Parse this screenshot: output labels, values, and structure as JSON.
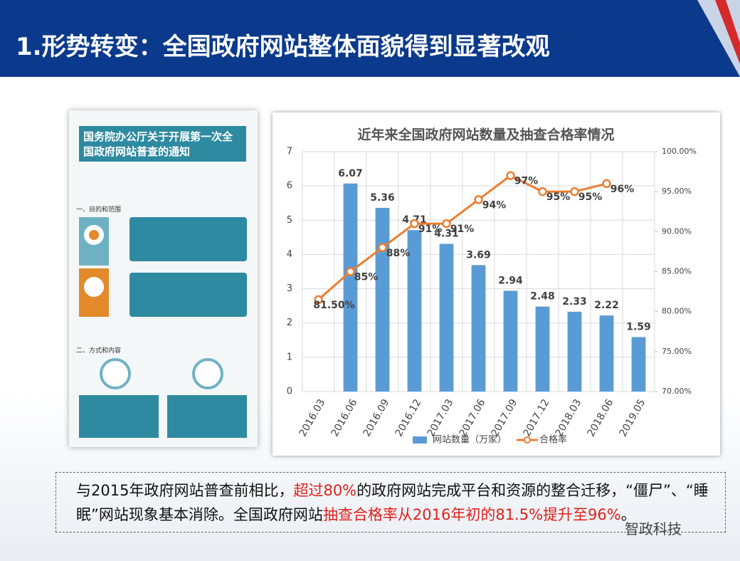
{
  "header": {
    "title": "1.形势转变：全国政府网站整体面貌得到显著改观"
  },
  "infographic": {
    "title": "国务院办公厅关于开展第一次全国政府网站普查的通知",
    "section_1": "一、目的和范围",
    "section_2": "二、方式和内容"
  },
  "chart_data": {
    "type": "bar-line",
    "title": "近年来全国政府网站数量及抽查合格率情况",
    "categories": [
      "2016.03",
      "2016.06",
      "2016.09",
      "2016.12",
      "2017.03",
      "2017.06",
      "2017.09",
      "2017.12",
      "2018.03",
      "2018.06",
      "2019.05"
    ],
    "series": [
      {
        "name": "网站数量（万家）",
        "type": "bar",
        "color": "#5b9bd5",
        "values": [
          null,
          6.07,
          5.36,
          4.71,
          4.31,
          3.69,
          2.94,
          2.48,
          2.33,
          2.22,
          1.59
        ]
      },
      {
        "name": "合格率",
        "type": "line",
        "axis": "y2",
        "color": "#ed7d31",
        "values": [
          81.5,
          85,
          88,
          91,
          91,
          94,
          97,
          95,
          95,
          96,
          null
        ],
        "value_labels": [
          "81.50%",
          "85%",
          "88%",
          "91%",
          "91%",
          "94%",
          "97%",
          "95%",
          "95%",
          "96%",
          null
        ]
      }
    ],
    "ylim": [
      0,
      7
    ],
    "yticks": [
      0,
      1,
      2,
      3,
      4,
      5,
      6,
      7
    ],
    "y2lim": [
      70,
      100
    ],
    "y2ticks": [
      {
        "value": 70,
        "label": "70.00%"
      },
      {
        "value": 75,
        "label": "75.00%"
      },
      {
        "value": 80,
        "label": "80.00%"
      },
      {
        "value": 85,
        "label": "85.00%"
      },
      {
        "value": 90,
        "label": "90.00%"
      },
      {
        "value": 95,
        "label": "95.00%"
      },
      {
        "value": 100,
        "label": "100.00%"
      }
    ],
    "grid": true,
    "legend": "bottom"
  },
  "caption": [
    "与2015年政府网站普查前相比，",
    "超过80%",
    "的政府网站完成平台和资源的整合迁移，“僵尸”、“睡眠”网站现象基本消除。全国政府网站",
    "抽查合格率从2016年初的81.5%提升至96%",
    "。"
  ],
  "watermark": "智政科技"
}
